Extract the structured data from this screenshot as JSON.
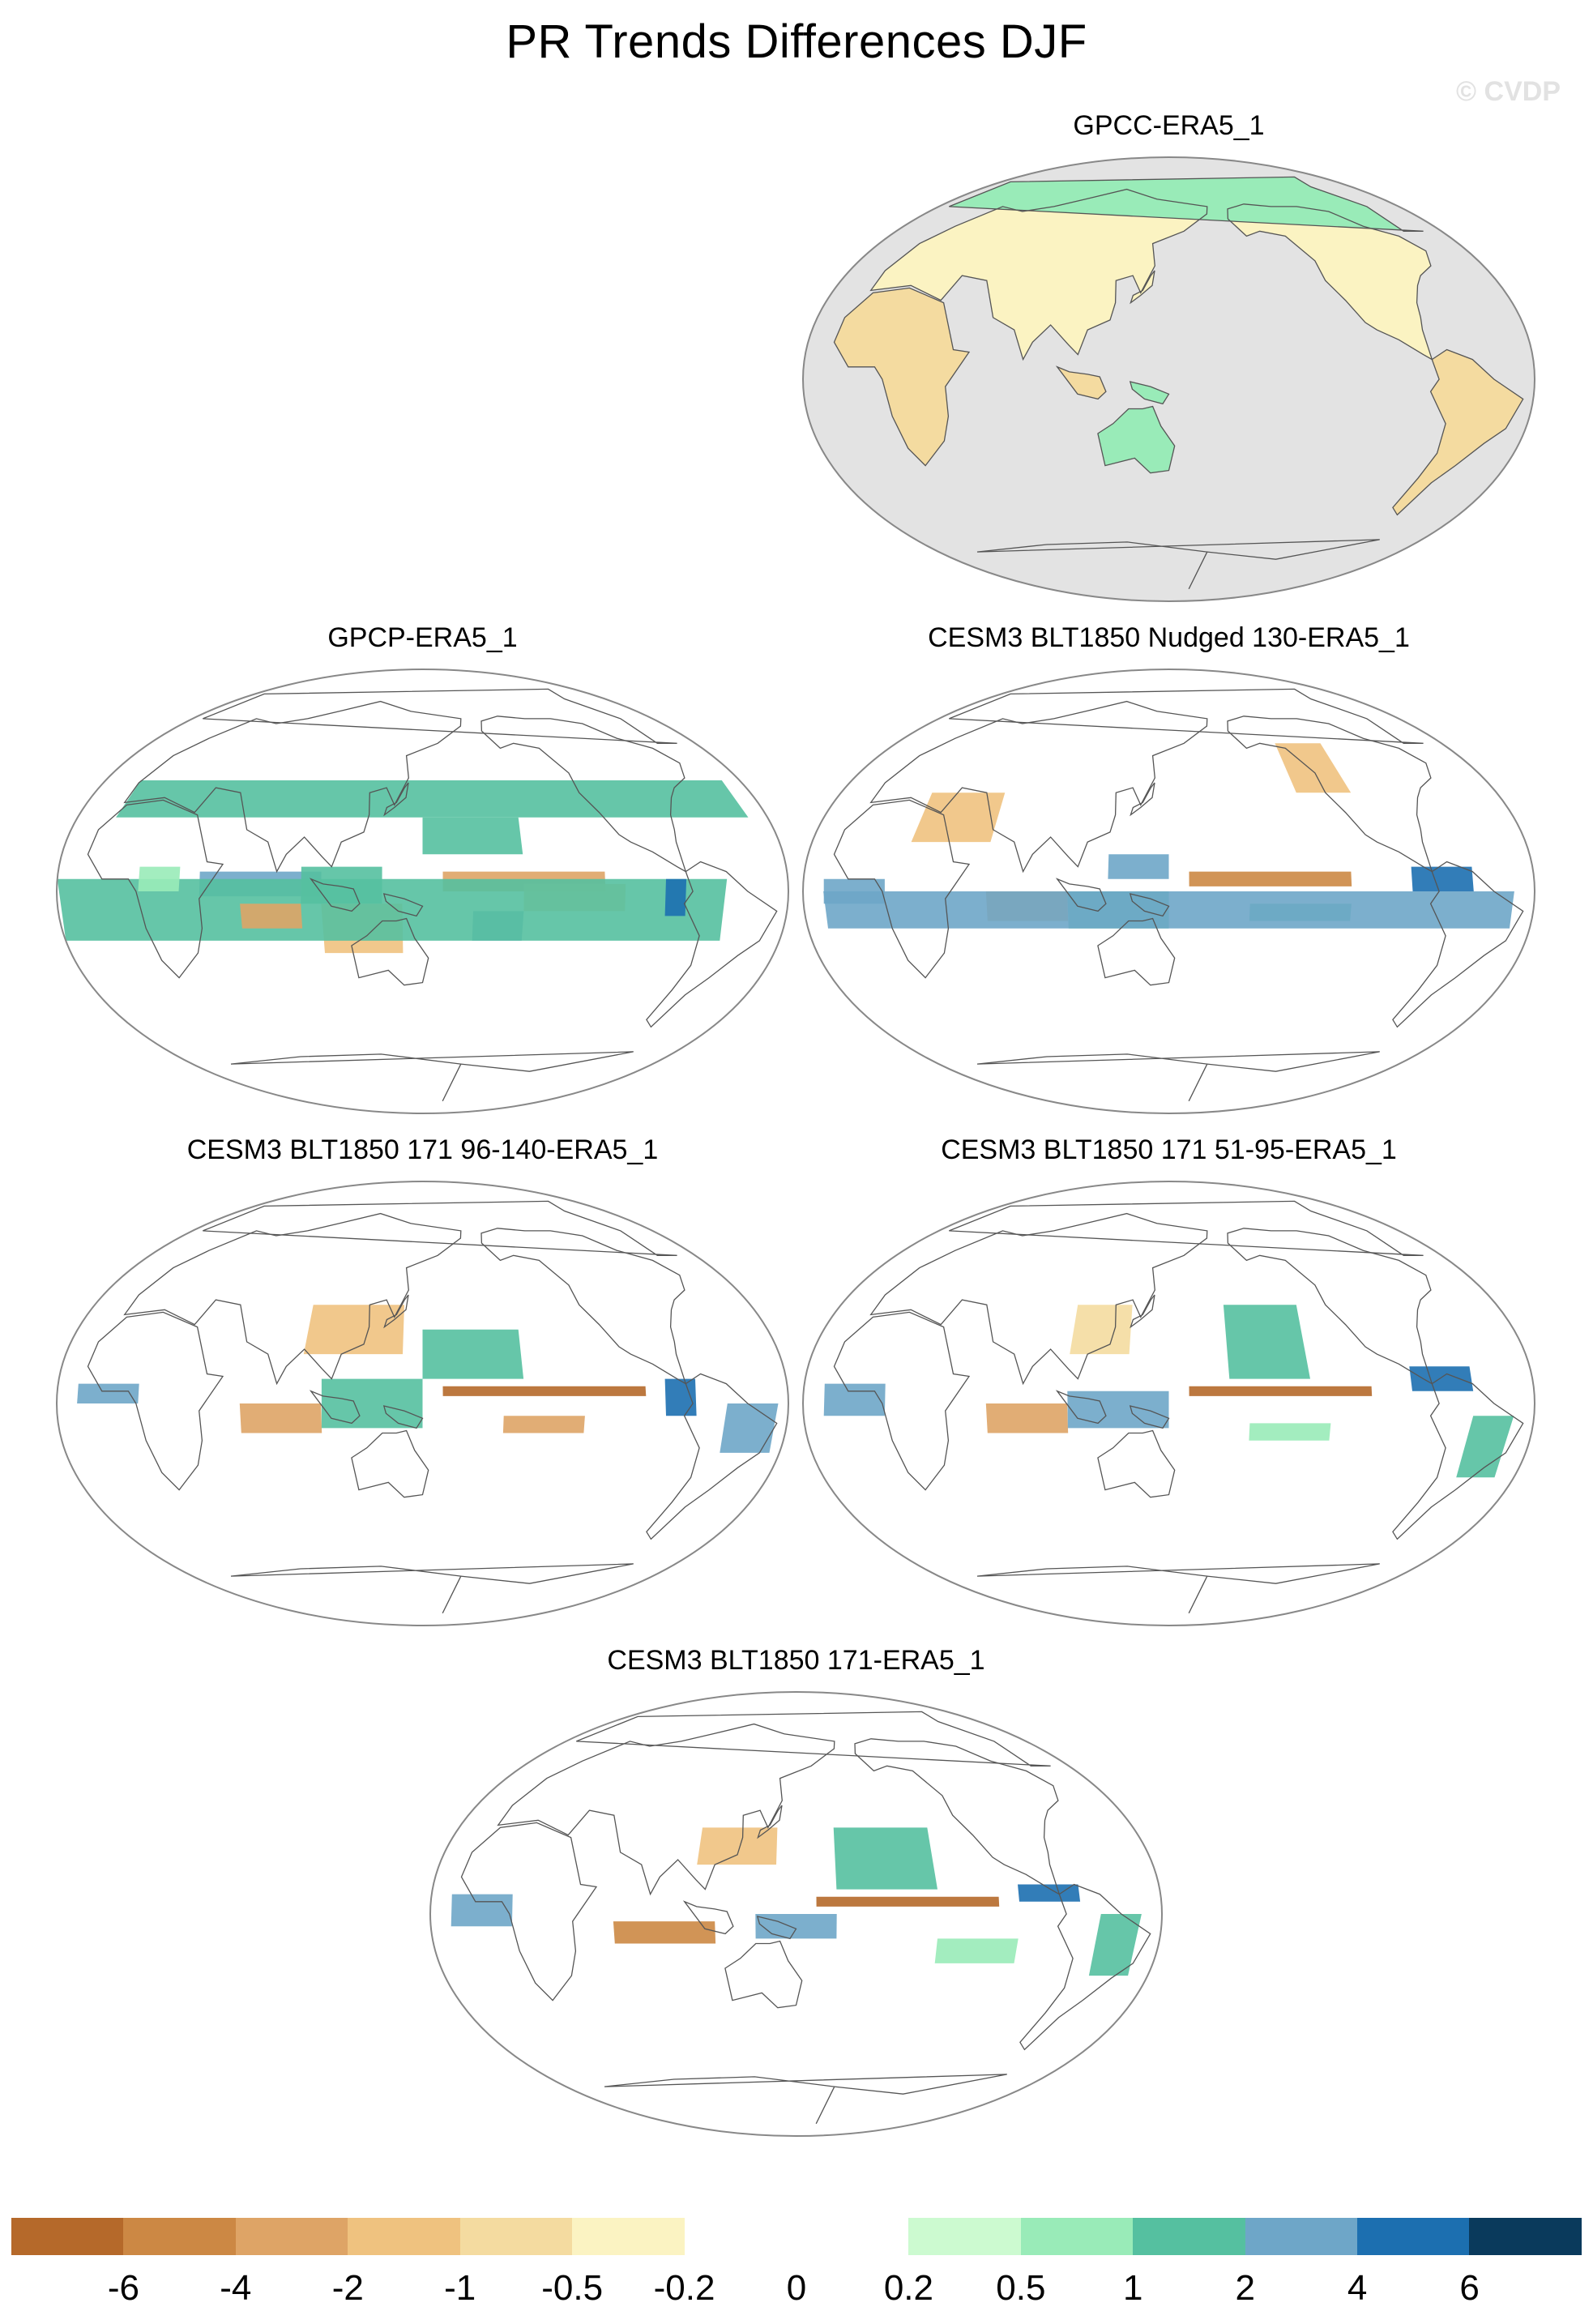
{
  "title": "PR Trends Differences DJF",
  "watermark": "© CVDP",
  "panels": [
    {
      "title": "GPCC-ERA5_1",
      "ocean_masked": true,
      "pattern": "gpcc"
    },
    {
      "title": "GPCP-ERA5_1",
      "ocean_masked": false,
      "pattern": "gpcp"
    },
    {
      "title": "CESM3 BLT1850 Nudged 130-ERA5_1",
      "ocean_masked": false,
      "pattern": "nudged"
    },
    {
      "title": "CESM3 BLT1850 171 96-140-ERA5_1",
      "ocean_masked": false,
      "pattern": "m96"
    },
    {
      "title": "CESM3 BLT1850 171 51-95-ERA5_1",
      "ocean_masked": false,
      "pattern": "m51"
    },
    {
      "title": "CESM3 BLT1850 171-ERA5_1",
      "ocean_masked": false,
      "pattern": "m171"
    }
  ],
  "colorbar": {
    "labels": [
      "-6",
      "-4",
      "-2",
      "-1",
      "-0.5",
      "-0.2",
      "0",
      "0.2",
      "0.5",
      "1",
      "2",
      "4",
      "6"
    ],
    "colors": [
      "#b5692a",
      "#cc8844",
      "#dea466",
      "#efc27f",
      "#f4dba0",
      "#fbf3c2",
      "#ffffff",
      "#ffffff",
      "#ccfad0",
      "#99ebb8",
      "#55c0a0",
      "#6ea6c8",
      "#1c6fb0",
      "#0a3a5c"
    ]
  },
  "colors": {
    "land_mask": "#e3e3e3",
    "coast": "#555555"
  }
}
